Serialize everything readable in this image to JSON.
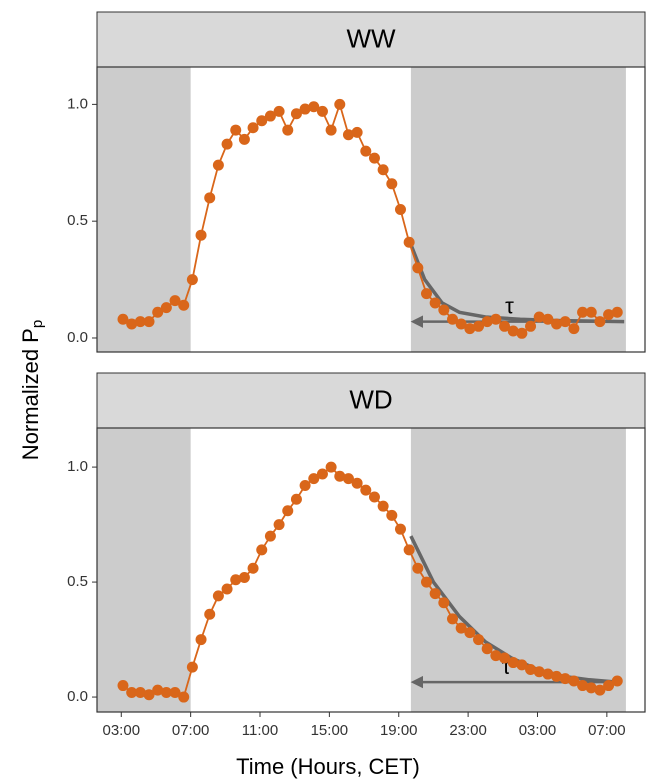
{
  "chart_data": [
    {
      "type": "line",
      "title": "WW",
      "color": "#d9661a",
      "x": [
        3.1,
        3.6,
        4.1,
        4.6,
        5.1,
        5.6,
        6.1,
        6.6,
        7.1,
        7.6,
        8.1,
        8.6,
        9.1,
        9.6,
        10.1,
        10.6,
        11.1,
        11.6,
        12.1,
        12.6,
        13.1,
        13.6,
        14.1,
        14.6,
        15.1,
        15.6,
        16.1,
        16.6,
        17.1,
        17.6,
        18.1,
        18.6,
        19.1,
        19.6,
        20.1,
        20.6,
        21.1,
        21.6,
        22.1,
        22.6,
        23.1,
        23.6,
        24.1,
        24.6,
        25.1,
        25.6,
        26.1,
        26.6,
        27.1,
        27.6,
        28.1,
        28.6,
        29.1,
        29.6,
        30.1,
        30.6,
        31.1,
        31.6
      ],
      "values": [
        0.08,
        0.06,
        0.07,
        0.07,
        0.11,
        0.13,
        0.16,
        0.14,
        0.25,
        0.44,
        0.6,
        0.74,
        0.83,
        0.89,
        0.85,
        0.9,
        0.93,
        0.95,
        0.97,
        0.89,
        0.96,
        0.98,
        0.99,
        0.97,
        0.89,
        1.0,
        0.87,
        0.88,
        0.8,
        0.77,
        0.72,
        0.66,
        0.55,
        0.41,
        0.3,
        0.19,
        0.15,
        0.12,
        0.08,
        0.06,
        0.04,
        0.05,
        0.07,
        0.08,
        0.05,
        0.03,
        0.02,
        0.05,
        0.09,
        0.08,
        0.06,
        0.07,
        0.04,
        0.11,
        0.11,
        0.07,
        0.1,
        0.11
      ],
      "fit": {
        "color": "#666666",
        "x": [
          19.7,
          20.5,
          21.5,
          22.5,
          24,
          26,
          28,
          32
        ],
        "values": [
          0.4,
          0.25,
          0.15,
          0.11,
          0.09,
          0.08,
          0.075,
          0.07
        ]
      },
      "annotation": "τ",
      "shade": {
        "color": "#cccccc",
        "ranges": [
          [
            1.6,
            7
          ],
          [
            19.7,
            32.1
          ]
        ]
      },
      "xlim": [
        1.6,
        33.2
      ],
      "ylim": [
        -0.06,
        1.16
      ],
      "yticks": [
        {
          "value": 0,
          "label": "0.0"
        },
        {
          "value": 0.5,
          "label": "0.5"
        },
        {
          "value": 1,
          "label": "1.0"
        }
      ]
    },
    {
      "type": "line",
      "title": "WD",
      "color": "#d9661a",
      "x": [
        3.1,
        3.6,
        4.1,
        4.6,
        5.1,
        5.6,
        6.1,
        6.6,
        7.1,
        7.6,
        8.1,
        8.6,
        9.1,
        9.6,
        10.1,
        10.6,
        11.1,
        11.6,
        12.1,
        12.6,
        13.1,
        13.6,
        14.1,
        14.6,
        15.1,
        15.6,
        16.1,
        16.6,
        17.1,
        17.6,
        18.1,
        18.6,
        19.1,
        19.6,
        20.1,
        20.6,
        21.1,
        21.6,
        22.1,
        22.6,
        23.1,
        23.6,
        24.1,
        24.6,
        25.1,
        25.6,
        26.1,
        26.6,
        27.1,
        27.6,
        28.1,
        28.6,
        29.1,
        29.6,
        30.1,
        30.6,
        31.1,
        31.6
      ],
      "values": [
        0.05,
        0.02,
        0.02,
        0.01,
        0.03,
        0.02,
        0.02,
        0.0,
        0.13,
        0.25,
        0.36,
        0.44,
        0.47,
        0.51,
        0.52,
        0.56,
        0.64,
        0.7,
        0.75,
        0.81,
        0.86,
        0.92,
        0.95,
        0.97,
        1.0,
        0.96,
        0.95,
        0.93,
        0.9,
        0.87,
        0.83,
        0.79,
        0.73,
        0.64,
        0.56,
        0.5,
        0.45,
        0.41,
        0.34,
        0.3,
        0.28,
        0.25,
        0.21,
        0.18,
        0.17,
        0.15,
        0.14,
        0.12,
        0.11,
        0.1,
        0.09,
        0.08,
        0.07,
        0.05,
        0.04,
        0.03,
        0.05,
        0.07
      ],
      "fit": {
        "color": "#666666",
        "x": [
          19.7,
          21,
          22.5,
          24,
          25.5,
          27,
          28.5,
          30,
          31.6
        ],
        "values": [
          0.7,
          0.5,
          0.35,
          0.24,
          0.17,
          0.12,
          0.09,
          0.075,
          0.065
        ]
      },
      "annotation": "τ",
      "shade": {
        "color": "#cccccc",
        "ranges": [
          [
            1.6,
            7
          ],
          [
            19.7,
            32.1
          ]
        ]
      },
      "xlim": [
        1.6,
        33.2
      ],
      "ylim": [
        -0.065,
        1.17
      ],
      "yticks": [
        {
          "value": 0,
          "label": "0.0"
        },
        {
          "value": 0.5,
          "label": "0.5"
        },
        {
          "value": 1,
          "label": "1.0"
        }
      ],
      "xticks": [
        {
          "value": 3,
          "label": "03:00"
        },
        {
          "value": 7,
          "label": "07:00"
        },
        {
          "value": 11,
          "label": "11:00"
        },
        {
          "value": 15,
          "label": "15:00"
        },
        {
          "value": 19,
          "label": "19:00"
        },
        {
          "value": 23,
          "label": "23:00"
        },
        {
          "value": 27,
          "label": "03:00"
        },
        {
          "value": 31,
          "label": "07:00"
        }
      ]
    }
  ],
  "x_label": "Time (Hours, CET)",
  "y_label": {
    "text": "Normalized P",
    "subscript": "p"
  }
}
